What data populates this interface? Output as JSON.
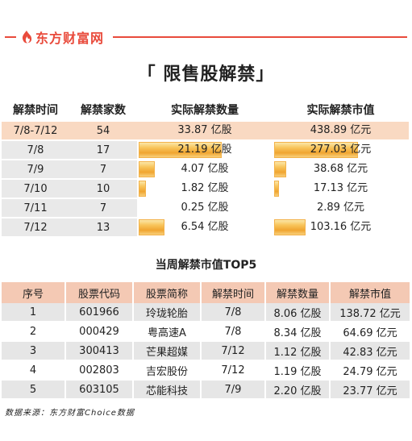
{
  "brand": {
    "name": "东方财富网",
    "accent": "#e94b3c"
  },
  "title": "「 限售股解禁」",
  "summary": {
    "headers": [
      "解禁时间",
      "解禁家数",
      "实际解禁数量",
      "实际解禁市值"
    ],
    "rows": [
      {
        "period": "7/8-7/12",
        "count": "54",
        "quantity": "33.87 亿股",
        "value": "438.89 亿元",
        "quantity_share": null,
        "value_share": null
      },
      {
        "period": "7/8",
        "count": "17",
        "quantity": "21.19 亿股",
        "value": "277.03 亿元",
        "quantity_share": 0.626,
        "value_share": 0.631
      },
      {
        "period": "7/9",
        "count": "7",
        "quantity": "4.07 亿股",
        "value": "38.68 亿元",
        "quantity_share": 0.12,
        "value_share": 0.088
      },
      {
        "period": "7/10",
        "count": "10",
        "quantity": "1.82 亿股",
        "value": "17.13 亿元",
        "quantity_share": 0.054,
        "value_share": 0.039
      },
      {
        "period": "7/11",
        "count": "7",
        "quantity": "0.25 亿股",
        "value": "2.89 亿元",
        "quantity_share": 0.007,
        "value_share": 0.007
      },
      {
        "period": "7/12",
        "count": "13",
        "quantity": "6.54 亿股",
        "value": "103.16 亿元",
        "quantity_share": 0.193,
        "value_share": 0.235
      }
    ]
  },
  "top5": {
    "title": "当周解禁市值TOP5",
    "headers": [
      "序号",
      "股票代码",
      "股票简称",
      "解禁时间",
      "解禁数量",
      "解禁市值"
    ],
    "rows": [
      [
        "1",
        "601966",
        "玲珑轮胎",
        "7/8",
        "8.06 亿股",
        "138.72 亿元"
      ],
      [
        "2",
        "000429",
        "粤高速A",
        "7/8",
        "8.34 亿股",
        "64.69 亿元"
      ],
      [
        "3",
        "300413",
        "芒果超媒",
        "7/12",
        "1.12 亿股",
        "42.83 亿元"
      ],
      [
        "4",
        "002803",
        "吉宏股份",
        "7/12",
        "1.19 亿股",
        "24.79 亿元"
      ],
      [
        "5",
        "603105",
        "芯能科技",
        "7/9",
        "2.20 亿股",
        "23.77 亿元"
      ]
    ]
  },
  "source": "数据来源：东方财富Choice数据"
}
